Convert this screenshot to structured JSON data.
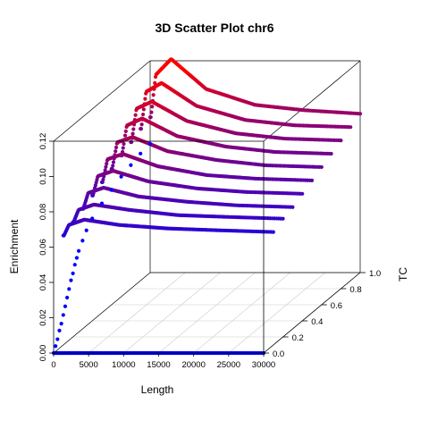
{
  "chart_data": {
    "type": "scatter",
    "subtype": "scatter3d",
    "title": "3D Scatter Plot chr6",
    "xlabel": "Length",
    "ylabel": "TC",
    "zlabel": "Enrichment",
    "xlim": [
      0,
      30000
    ],
    "ylim": [
      0,
      1
    ],
    "zlim": [
      0,
      0.12
    ],
    "x_ticks": [
      "0",
      "5000",
      "10000",
      "15000",
      "20000",
      "25000",
      "30000"
    ],
    "y_ticks": [
      "0.0",
      "0.2",
      "0.4",
      "0.6",
      "0.8",
      "1.0"
    ],
    "z_ticks": [
      "0.00",
      "0.02",
      "0.04",
      "0.06",
      "0.08",
      "0.10",
      "0.12"
    ],
    "color_gradient": {
      "low": "#0000ff",
      "high": "#ff0000",
      "mapped_to": "Enrichment"
    },
    "grid": true,
    "box": true,
    "series": [
      {
        "tc": 0.0,
        "curve": [
          [
            0,
            0
          ],
          [
            30000,
            0
          ]
        ]
      },
      {
        "tc": 0.1,
        "curve": [
          [
            100,
            0.062
          ],
          [
            800,
            0.068
          ],
          [
            3000,
            0.071
          ],
          [
            8000,
            0.068
          ],
          [
            15000,
            0.066
          ],
          [
            22000,
            0.065
          ],
          [
            30000,
            0.064
          ]
        ]
      },
      {
        "tc": 0.2,
        "curve": [
          [
            100,
            0.065
          ],
          [
            800,
            0.072
          ],
          [
            3000,
            0.075
          ],
          [
            8000,
            0.072
          ],
          [
            15000,
            0.069
          ],
          [
            22000,
            0.068
          ],
          [
            30000,
            0.067
          ]
        ]
      },
      {
        "tc": 0.3,
        "curve": [
          [
            100,
            0.068
          ],
          [
            800,
            0.077
          ],
          [
            3000,
            0.08
          ],
          [
            8000,
            0.075
          ],
          [
            15000,
            0.072
          ],
          [
            22000,
            0.07
          ],
          [
            30000,
            0.069
          ]
        ]
      },
      {
        "tc": 0.4,
        "curve": [
          [
            100,
            0.071
          ],
          [
            800,
            0.082
          ],
          [
            3000,
            0.085
          ],
          [
            8000,
            0.079
          ],
          [
            15000,
            0.075
          ],
          [
            22000,
            0.073
          ],
          [
            30000,
            0.072
          ]
        ]
      },
      {
        "tc": 0.5,
        "curve": [
          [
            100,
            0.074
          ],
          [
            800,
            0.087
          ],
          [
            3000,
            0.09
          ],
          [
            8000,
            0.083
          ],
          [
            15000,
            0.078
          ],
          [
            22000,
            0.076
          ],
          [
            30000,
            0.075
          ]
        ]
      },
      {
        "tc": 0.6,
        "curve": [
          [
            100,
            0.077
          ],
          [
            800,
            0.092
          ],
          [
            3000,
            0.095
          ],
          [
            8000,
            0.087
          ],
          [
            15000,
            0.082
          ],
          [
            22000,
            0.079
          ],
          [
            30000,
            0.078
          ]
        ]
      },
      {
        "tc": 0.7,
        "curve": [
          [
            100,
            0.08
          ],
          [
            800,
            0.097
          ],
          [
            3000,
            0.101
          ],
          [
            8000,
            0.091
          ],
          [
            15000,
            0.085
          ],
          [
            22000,
            0.082
          ],
          [
            30000,
            0.081
          ]
        ]
      },
      {
        "tc": 0.8,
        "curve": [
          [
            100,
            0.083
          ],
          [
            800,
            0.102
          ],
          [
            3000,
            0.106
          ],
          [
            8000,
            0.095
          ],
          [
            15000,
            0.088
          ],
          [
            22000,
            0.085
          ],
          [
            30000,
            0.084
          ]
        ]
      },
      {
        "tc": 0.9,
        "curve": [
          [
            100,
            0.086
          ],
          [
            800,
            0.107
          ],
          [
            3000,
            0.112
          ],
          [
            8000,
            0.099
          ],
          [
            15000,
            0.091
          ],
          [
            22000,
            0.088
          ],
          [
            30000,
            0.087
          ]
        ]
      },
      {
        "tc": 1.0,
        "curve": [
          [
            100,
            0.088
          ],
          [
            800,
            0.112
          ],
          [
            3000,
            0.121
          ],
          [
            8000,
            0.104
          ],
          [
            15000,
            0.095
          ],
          [
            22000,
            0.092
          ],
          [
            30000,
            0.09
          ]
        ]
      }
    ],
    "length_zero_column": {
      "x": 0,
      "points": [
        [
          0.02,
          0.003
        ],
        [
          0.04,
          0.006
        ],
        [
          0.06,
          0.01
        ],
        [
          0.08,
          0.013
        ],
        [
          0.1,
          0.017
        ],
        [
          0.12,
          0.021
        ],
        [
          0.14,
          0.025
        ],
        [
          0.16,
          0.029
        ],
        [
          0.18,
          0.033
        ],
        [
          0.2,
          0.036
        ],
        [
          0.22,
          0.04
        ],
        [
          0.24,
          0.043
        ],
        [
          0.26,
          0.046
        ],
        [
          0.3,
          0.05
        ],
        [
          0.34,
          0.054
        ],
        [
          0.4,
          0.058
        ],
        [
          0.5,
          0.062
        ],
        [
          0.6,
          0.065
        ],
        [
          0.7,
          0.068
        ],
        [
          0.8,
          0.07
        ],
        [
          0.9,
          0.072
        ],
        [
          1.0,
          0.073
        ]
      ]
    }
  }
}
